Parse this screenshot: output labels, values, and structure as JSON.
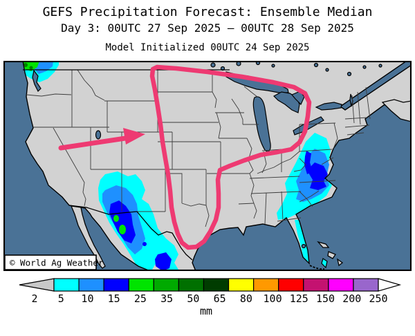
{
  "header": {
    "title": "GEFS Precipitation Forecast: Ensemble Median",
    "subtitle": "Day 3: 00UTC 27 Sep 2025 — 00UTC 28 Sep 2025",
    "model_init": "Model Initialized 00UTC 24 Sep 2025"
  },
  "map": {
    "copyright": "© World Ag Weather"
  },
  "colorbar": {
    "unit": "mm",
    "levels": [
      "2",
      "5",
      "10",
      "15",
      "25",
      "35",
      "50",
      "65",
      "80",
      "100",
      "125",
      "150",
      "200",
      "250"
    ],
    "cell_colors": [
      "#00FFFF",
      "#1E90FF",
      "#0000FF",
      "#00E400",
      "#00AA00",
      "#007000",
      "#003C00",
      "#FFFF00",
      "#FF9900",
      "#FF0000",
      "#C41270",
      "#FF00FF",
      "#9966CC"
    ],
    "below_min_color": "#C8C8C8",
    "above_max_color": "#FFFFFF"
  },
  "colors": {
    "ocean": "#4A7296",
    "land": "#D2D2D2",
    "state_border": "#3C3C3C",
    "coast": "#000000",
    "pink": "#EE3A72",
    "precip_cyan": "#00FFFF",
    "precip_lightblue": "#1E90FF",
    "precip_blue": "#0000FF",
    "precip_green": "#00E400",
    "precip_darkgreen": "#008000"
  }
}
